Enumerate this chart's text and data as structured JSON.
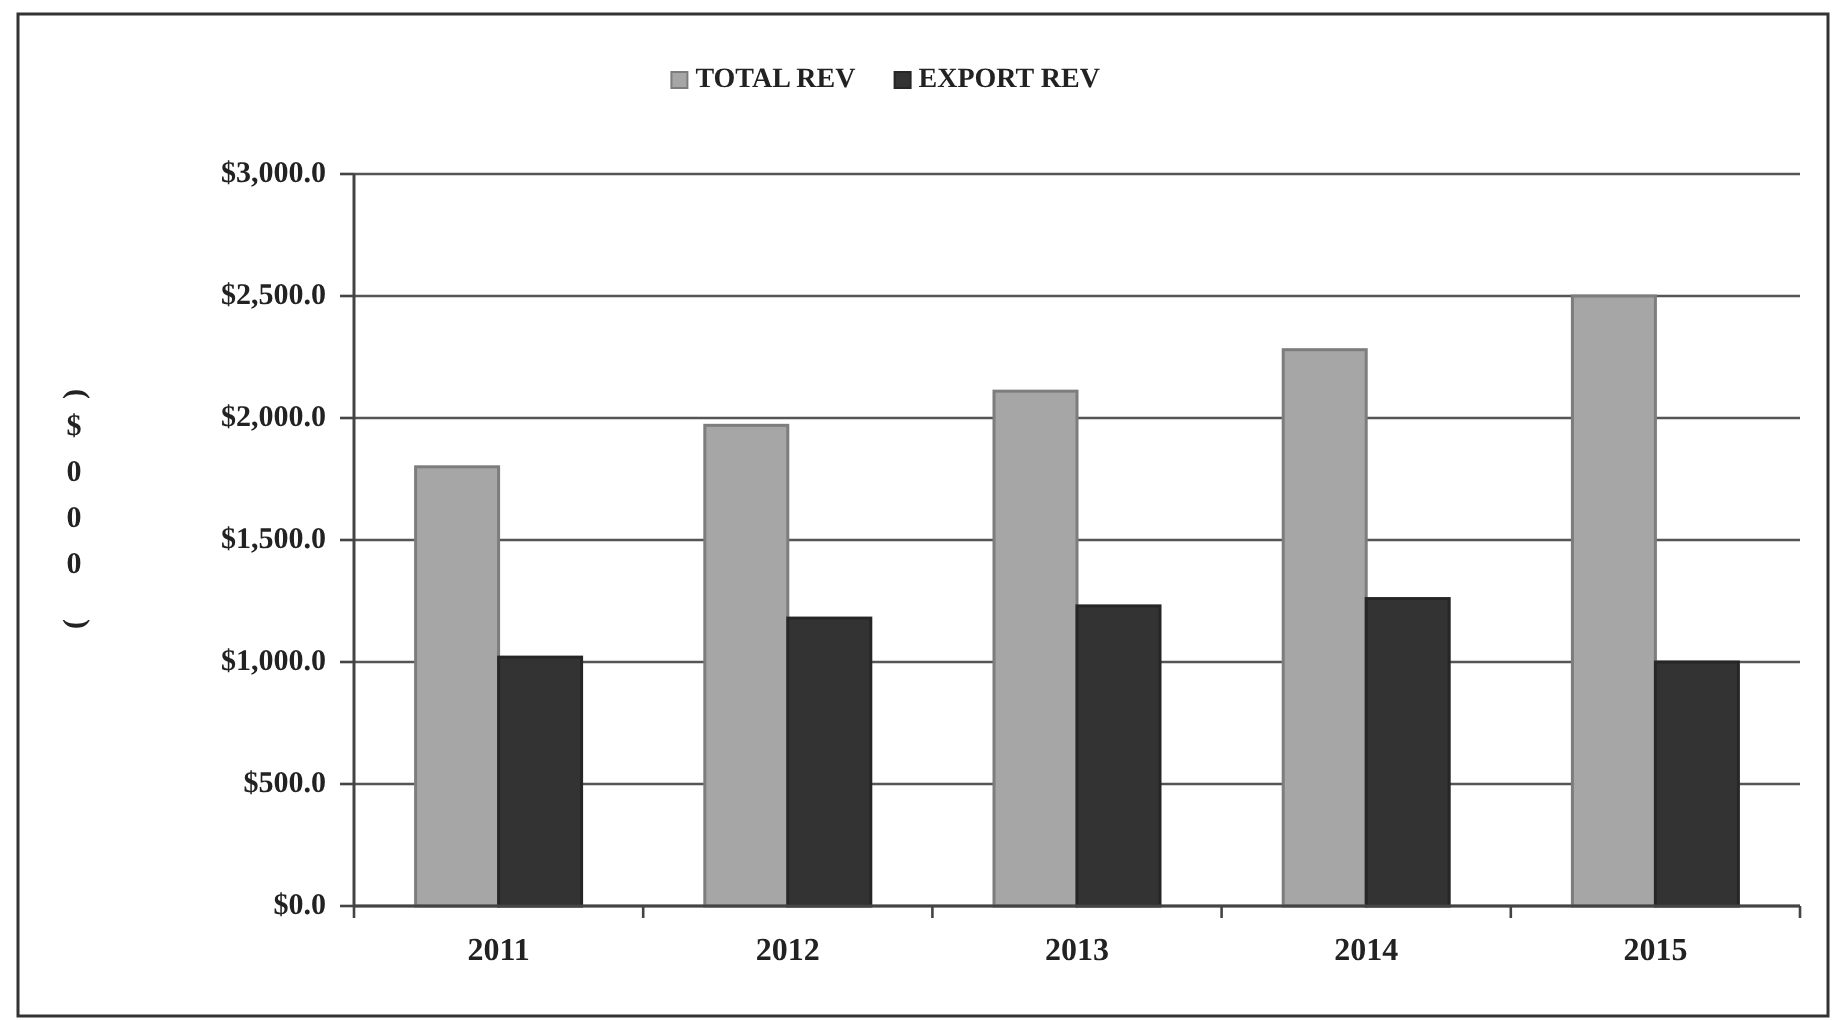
{
  "chart_data": {
    "type": "bar",
    "ylabel": "($000)",
    "categories": [
      "2011",
      "2012",
      "2013",
      "2014",
      "2015"
    ],
    "series": [
      {
        "name": "TOTAL REV",
        "color": "#a6a6a6",
        "values": [
          1800,
          1970,
          2110,
          2280,
          2500
        ]
      },
      {
        "name": "EXPORT REV",
        "color": "#333333",
        "values": [
          1020,
          1180,
          1230,
          1260,
          1000
        ]
      }
    ],
    "ylim": [
      0,
      3000
    ],
    "yticks": [
      {
        "value": 0,
        "label": "$0.0"
      },
      {
        "value": 500,
        "label": "$500.0"
      },
      {
        "value": 1000,
        "label": "$1,000.0"
      },
      {
        "value": 1500,
        "label": "$1,500.0"
      },
      {
        "value": 2000,
        "label": "$2,000.0"
      },
      {
        "value": 2500,
        "label": "$2,500.0"
      },
      {
        "value": 3000,
        "label": "$3,000.0"
      }
    ],
    "grid": "y",
    "legend": "top"
  }
}
